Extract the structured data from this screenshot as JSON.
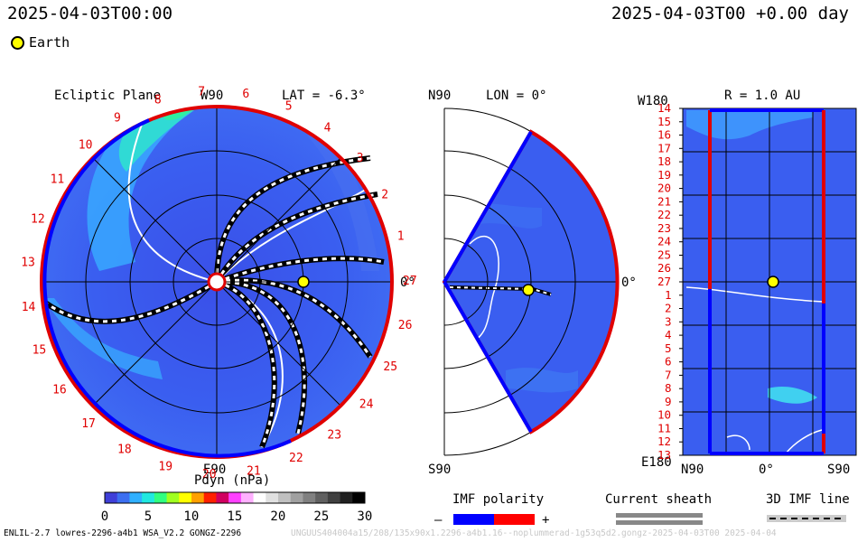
{
  "header": {
    "left_time": "2025-04-03T00:00",
    "right_time": "2025-04-03T00 +0.00 day"
  },
  "legend": {
    "earth_label": "Earth"
  },
  "ecliptic": {
    "title": "Ecliptic Plane",
    "lat_label": "LAT = -6.3°",
    "top_label": "W90",
    "bottom_label": "E90",
    "right_label": "0°",
    "carrington": [
      "1",
      "2",
      "3",
      "4",
      "5",
      "6",
      "7",
      "8",
      "9",
      "10",
      "11",
      "12",
      "13",
      "14",
      "15",
      "16",
      "17",
      "18",
      "19",
      "20",
      "21",
      "22",
      "23",
      "24",
      "25",
      "26",
      "27"
    ]
  },
  "meridional": {
    "top_label": "N90",
    "bottom_label": "S90",
    "lon_label": "LON = 0°",
    "right_label": "0°"
  },
  "radial": {
    "title": "R = 1.0 AU",
    "corner_top": "W180",
    "corner_bottom": "E180",
    "x_left": "N90",
    "x_mid": "0°",
    "x_right": "S90",
    "rows": [
      "14",
      "15",
      "16",
      "17",
      "18",
      "19",
      "20",
      "21",
      "22",
      "23",
      "24",
      "25",
      "26",
      "27",
      "1",
      "2",
      "3",
      "4",
      "5",
      "6",
      "7",
      "8",
      "9",
      "10",
      "11",
      "12",
      "13"
    ]
  },
  "colorbar": {
    "title": "Pdyn (nPa)",
    "ticks": [
      "0",
      "5",
      "10",
      "15",
      "20",
      "25",
      "30"
    ],
    "colors": [
      "#3f3fd8",
      "#3c6ff0",
      "#30b0ff",
      "#20e8e0",
      "#30ff80",
      "#a0ff20",
      "#ffff00",
      "#ffa000",
      "#ff2000",
      "#d00060",
      "#ff40ff",
      "#ffb0ff",
      "#ffffff",
      "#e0e0e0",
      "#c0c0c0",
      "#a0a0a0",
      "#808080",
      "#606060",
      "#404040",
      "#202020",
      "#000000"
    ]
  },
  "imf": {
    "title": "IMF polarity",
    "minus": "–",
    "plus": "+",
    "neg_color": "#0000ff",
    "pos_color": "#ff0000"
  },
  "sheath": {
    "title": "Current sheath"
  },
  "line3d": {
    "title": "3D IMF line"
  },
  "footer": {
    "left": "ENLIL-2.7 lowres-2296-a4b1 WSA_V2.2 GONGZ-2296",
    "right": "UNGUUS404004a15/208/135x90x1.2296-a4b1.16--noplummerad-1g53q5d2.gongz-2025-04-03T00   2025-04-04"
  },
  "colors": {
    "field": "#3a5ef0",
    "high": "#40d0e8",
    "grid": "#000000"
  }
}
